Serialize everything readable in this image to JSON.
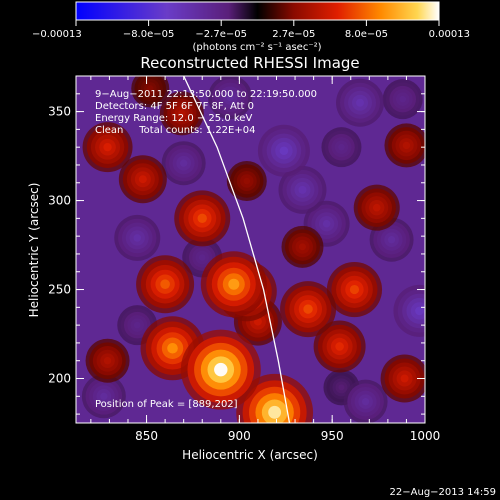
{
  "chart_data": {
    "type": "heatmap",
    "title": "Reconstructed RHESSI Image",
    "xlabel": "Heliocentric X (arcsec)",
    "ylabel": "Heliocentric Y (arcsec)",
    "xlim": [
      812,
      1000
    ],
    "ylim": [
      175,
      370
    ],
    "x_ticks": [
      "850",
      "900",
      "950",
      "1000"
    ],
    "y_ticks": [
      "200",
      "250",
      "300",
      "350"
    ],
    "colorbar": {
      "ticks": [
        "−0.00013",
        "−8.0e−05",
        "−2.7e−05",
        "2.7e−05",
        "8.0e−05",
        "0.00013"
      ],
      "units": "(photons cm⁻² s⁻¹ asec⁻²)",
      "range": [
        -0.00013,
        0.00013
      ]
    },
    "annotations": [
      "9−Aug−2011 22:13:50.000 to 22:19:50.000",
      "Detectors: 4F 5F 6F 7F 8F, Att 0",
      "Energy Range: 12.0 − 25.0 keV",
      "Clean     Total counts: 1.22E+04"
    ],
    "peak_label": "Position of Peak = [889,202]",
    "footer_date": "22−Aug−2013 14:59",
    "limb_curve": [
      [
        870,
        370
      ],
      [
        888,
        330
      ],
      [
        902,
        290
      ],
      [
        913,
        250
      ],
      [
        921,
        210
      ],
      [
        927,
        175
      ]
    ],
    "sources": [
      {
        "x": 890,
        "y": 205,
        "value": 0.00013
      },
      {
        "x": 919,
        "y": 181,
        "value": 0.000122
      },
      {
        "x": 897,
        "y": 253,
        "value": 9.5e-05
      },
      {
        "x": 904,
        "y": 249,
        "value": 8e-05
      },
      {
        "x": 864,
        "y": 217,
        "value": 9e-05
      },
      {
        "x": 880,
        "y": 290,
        "value": 7e-05
      },
      {
        "x": 860,
        "y": 253,
        "value": 7.5e-05
      },
      {
        "x": 937,
        "y": 239,
        "value": 7e-05
      },
      {
        "x": 962,
        "y": 250,
        "value": 6.8e-05
      },
      {
        "x": 954,
        "y": 218,
        "value": 6e-05
      },
      {
        "x": 829,
        "y": 330,
        "value": 5.5e-05
      },
      {
        "x": 848,
        "y": 312,
        "value": 5e-05
      },
      {
        "x": 869,
        "y": 349,
        "value": 4e-05
      },
      {
        "x": 989,
        "y": 200,
        "value": 5e-05
      },
      {
        "x": 974,
        "y": 296,
        "value": 4.5e-05
      },
      {
        "x": 829,
        "y": 210,
        "value": 4e-05
      },
      {
        "x": 990,
        "y": 331,
        "value": 4e-05
      },
      {
        "x": 904,
        "y": 311,
        "value": 3e-05
      },
      {
        "x": 934,
        "y": 274,
        "value": 3.5e-05
      },
      {
        "x": 910,
        "y": 232,
        "value": 5e-05
      },
      {
        "x": 852,
        "y": 363,
        "value": 2.5e-05
      },
      {
        "x": 955,
        "y": 330,
        "value": -3e-05
      },
      {
        "x": 924,
        "y": 328,
        "value": -6e-05
      },
      {
        "x": 934,
        "y": 306,
        "value": -5e-05
      },
      {
        "x": 947,
        "y": 287,
        "value": -4.5e-05
      },
      {
        "x": 965,
        "y": 355,
        "value": -5e-05
      },
      {
        "x": 895,
        "y": 358,
        "value": -4e-05
      },
      {
        "x": 845,
        "y": 279,
        "value": -4.5e-05
      },
      {
        "x": 870,
        "y": 321,
        "value": -4e-05
      },
      {
        "x": 982,
        "y": 278,
        "value": -4e-05
      },
      {
        "x": 997,
        "y": 238,
        "value": -6e-05
      },
      {
        "x": 827,
        "y": 190,
        "value": -4e-05
      },
      {
        "x": 845,
        "y": 230,
        "value": -3e-05
      },
      {
        "x": 988,
        "y": 357,
        "value": -3e-05
      },
      {
        "x": 968,
        "y": 187,
        "value": -4e-05
      },
      {
        "x": 880,
        "y": 268,
        "value": -3e-05
      },
      {
        "x": 955,
        "y": 195,
        "value": -2e-05
      }
    ]
  }
}
